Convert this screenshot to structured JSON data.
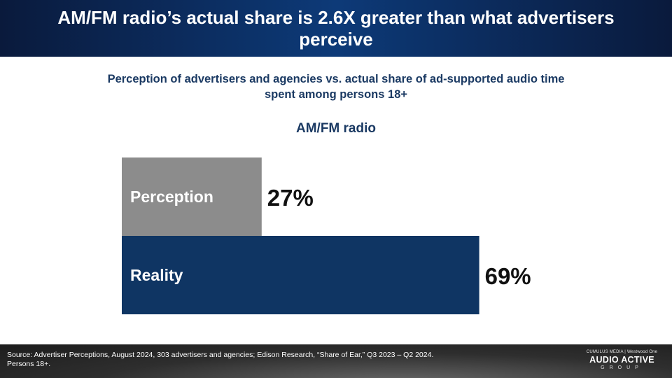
{
  "header": {
    "title": "AM/FM radio’s actual share is 2.6X greater than what advertisers perceive"
  },
  "subtitle": "Perception of advertisers and agencies vs. actual share of ad-supported audio time spent among persons 18+",
  "chart_data": {
    "type": "bar",
    "orientation": "horizontal",
    "title": "AM/FM radio",
    "categories": [
      "Perception",
      "Reality"
    ],
    "values": [
      27,
      69
    ],
    "value_labels": [
      "27%",
      "69%"
    ],
    "xlim": [
      0,
      100
    ],
    "grid": false,
    "colors": [
      "#8c8c8c",
      "#0f3563"
    ]
  },
  "footer": {
    "source": "Source: Advertiser Perceptions, August 2024, 303 advertisers and agencies; Edison Research, “Share of Ear,” Q3 2023 – Q2 2024. Persons 18+.",
    "logo_top": "CUMULUS MEDIA | Westwood One",
    "logo_main": "AUDIO ACTIVE",
    "logo_sub": "GROUP"
  }
}
